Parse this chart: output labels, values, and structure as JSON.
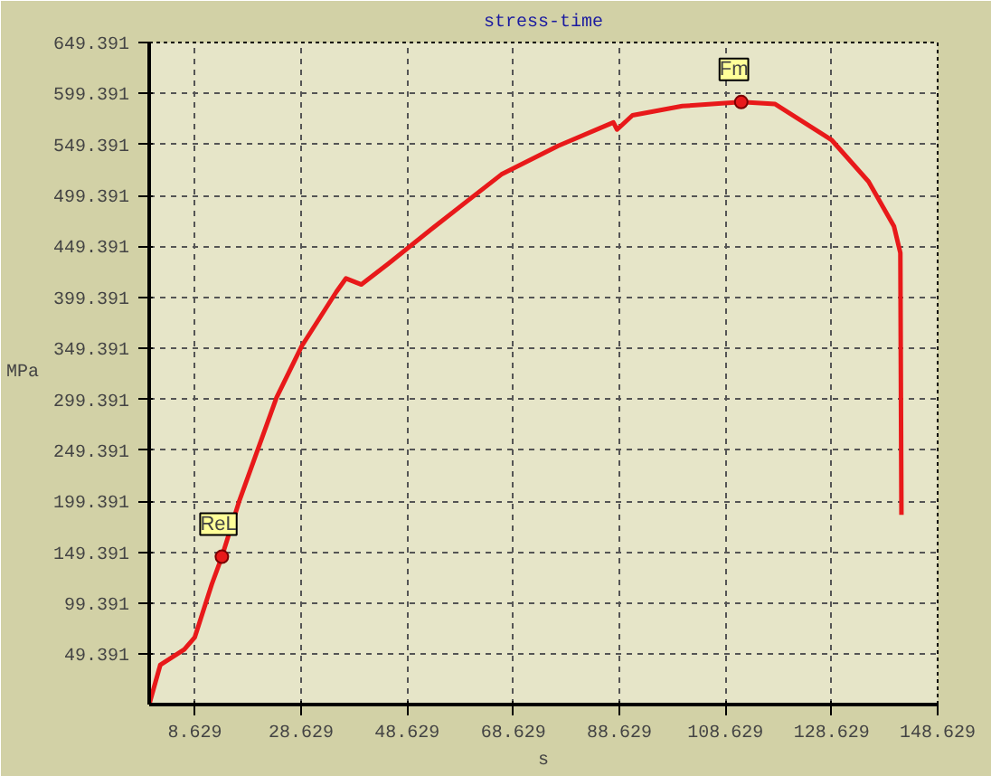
{
  "chart_data": {
    "type": "line",
    "title": "stress-time",
    "xlabel": "s",
    "ylabel": "MPa",
    "x": [
      0,
      2.1,
      6.6,
      8.6,
      11.8,
      13.7,
      17,
      24,
      28.8,
      35.3,
      37.1,
      40,
      45.2,
      53.6,
      66.4,
      77.1,
      87.5,
      88.2,
      91.1,
      100.5,
      111.6,
      118,
      128.6,
      135.6,
      140.4,
      141.6,
      141.8
    ],
    "series": [
      {
        "color": "#e8191a",
        "values": [
          0,
          39,
          54,
          66,
          118,
          145,
          200,
          301,
          352,
          405,
          418,
          412,
          433,
          468,
          520,
          548,
          571,
          564,
          578,
          587,
          591,
          589,
          554,
          513,
          469,
          443,
          186
        ]
      }
    ],
    "xlim": [
      0,
      148.629
    ],
    "ylim": [
      0,
      649.391
    ],
    "xticks": [
      8.629,
      28.629,
      48.629,
      68.629,
      88.629,
      108.629,
      128.629,
      148.629
    ],
    "yticks": [
      49.391,
      99.391,
      149.391,
      199.391,
      249.391,
      299.391,
      349.391,
      399.391,
      449.391,
      499.391,
      549.391,
      599.391,
      649.391
    ],
    "annotations": [
      {
        "text": "ReL",
        "x": 13.7,
        "y": 145
      },
      {
        "text": "Fm",
        "x": 111.6,
        "y": 591
      }
    ],
    "grid": true,
    "line_style": "solid",
    "marker": "none"
  }
}
